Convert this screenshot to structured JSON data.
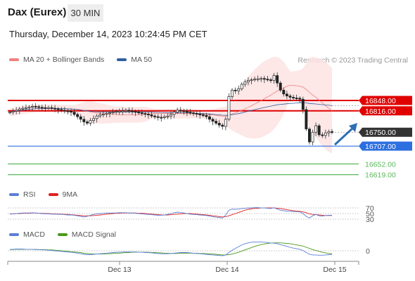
{
  "header": {
    "title": "Dax (Eurex)",
    "timeframe": "30 MIN",
    "datetime": "Thursday, December 14, 2023 10:24:45 PM CET",
    "credit": "Research © 2023 Trading Central"
  },
  "legend": {
    "ma20_label": "MA 20 + Bollinger Bands",
    "ma50_label": "MA 50",
    "rsi_label": "RSI",
    "rsi_ma_label": "9MA",
    "macd_label": "MACD",
    "macd_signal_label": "MACD Signal"
  },
  "colors": {
    "ma20": "#f08080",
    "ma50": "#2f5fa0",
    "bollinger_fill": "#fde3e3",
    "resistance": "#e00000",
    "support": "#2d6fe0",
    "target": "#5cb85c",
    "current": "#333333",
    "rsi": "#5b7fd6",
    "rsi_ma": "#e02020",
    "macd": "#5b7fd6",
    "macd_signal": "#4a9a1a",
    "arrow": "#2f6fb5"
  },
  "chart_data": {
    "type": "candlestick",
    "price_range": [
      16590,
      16950
    ],
    "price_levels": [
      {
        "label": "16848.00",
        "value": 16848,
        "kind": "resistance"
      },
      {
        "label": "16816.00",
        "value": 16816,
        "kind": "resistance"
      },
      {
        "label": "16750.00",
        "value": 16750,
        "kind": "current"
      },
      {
        "label": "16707.00",
        "value": 16707,
        "kind": "support"
      },
      {
        "label": "16652.00",
        "value": 16652,
        "kind": "target"
      },
      {
        "label": "16619.00",
        "value": 16619,
        "kind": "target"
      }
    ],
    "x_labels": [
      "Dec 13",
      "Dec 14",
      "Dec 15"
    ],
    "close": [
      16812,
      16815,
      16818,
      16822,
      16824,
      16826,
      16828,
      16830,
      16829,
      16827,
      16826,
      16825,
      16826,
      16824,
      16822,
      16820,
      16818,
      16816,
      16815,
      16812,
      16805,
      16798,
      16790,
      16782,
      16778,
      16786,
      16792,
      16800,
      16804,
      16806,
      16808,
      16810,
      16812,
      16814,
      16815,
      16816,
      16818,
      16816,
      16814,
      16812,
      16810,
      16808,
      16806,
      16804,
      16800,
      16798,
      16796,
      16795,
      16798,
      16800,
      16805,
      16812,
      16818,
      16816,
      16814,
      16812,
      16810,
      16808,
      16806,
      16804,
      16802,
      16798,
      16790,
      16784,
      16778,
      16772,
      16768,
      16790,
      16860,
      16880,
      16878,
      16884,
      16898,
      16905,
      16910,
      16912,
      16914,
      16915,
      16916,
      16914,
      16912,
      16910,
      16925,
      16902,
      16880,
      16868,
      16862,
      16858,
      16856,
      16855,
      16852,
      16820,
      16760,
      16720,
      16750,
      16770,
      16742,
      16740,
      16748,
      16752,
      16750
    ],
    "rsi": {
      "levels": [
        70,
        50,
        30
      ],
      "series": [
        48,
        49,
        50,
        51,
        52,
        52,
        52,
        53,
        52,
        51,
        50,
        49,
        49,
        48,
        48,
        47,
        47,
        46,
        45,
        45,
        44,
        42,
        40,
        38,
        40,
        44,
        47,
        49,
        50,
        51,
        52,
        52,
        52,
        52,
        53,
        53,
        53,
        52,
        52,
        51,
        50,
        49,
        48,
        47,
        46,
        45,
        44,
        44,
        45,
        47,
        50,
        53,
        55,
        54,
        52,
        50,
        48,
        47,
        46,
        45,
        44,
        43,
        41,
        39,
        37,
        36,
        34,
        45,
        62,
        66,
        65,
        66,
        68,
        69,
        70,
        70,
        71,
        71,
        70,
        70,
        69,
        68,
        71,
        66,
        62,
        60,
        59,
        58,
        57,
        57,
        56,
        50,
        40,
        34,
        42,
        47,
        42,
        41,
        43,
        44,
        44
      ],
      "ma_series": [
        49,
        49,
        50,
        50,
        51,
        51,
        51,
        52,
        52,
        51,
        51,
        50,
        50,
        49,
        49,
        48,
        48,
        47,
        47,
        46,
        45,
        44,
        43,
        42,
        42,
        42,
        43,
        44,
        45,
        46,
        48,
        49,
        50,
        51,
        51,
        52,
        52,
        52,
        52,
        52,
        51,
        51,
        50,
        49,
        48,
        47,
        46,
        45,
        45,
        45,
        46,
        47,
        48,
        49,
        50,
        50,
        50,
        49,
        48,
        47,
        46,
        45,
        44,
        42,
        41,
        39,
        38,
        39,
        42,
        46,
        50,
        54,
        58,
        62,
        65,
        67,
        68,
        69,
        70,
        70,
        70,
        70,
        70,
        69,
        68,
        66,
        64,
        62,
        60,
        59,
        58,
        56,
        53,
        49,
        47,
        46,
        45,
        44,
        43,
        43,
        43
      ]
    },
    "macd": {
      "zero": 0,
      "series": [
        5,
        5,
        6,
        6,
        6,
        5,
        5,
        5,
        4,
        4,
        3,
        3,
        2,
        1,
        0,
        -1,
        -2,
        -3,
        -4,
        -5,
        -6,
        -8,
        -10,
        -12,
        -13,
        -13,
        -12,
        -11,
        -10,
        -9,
        -8,
        -7,
        -6,
        -5,
        -5,
        -4,
        -4,
        -4,
        -4,
        -4,
        -5,
        -5,
        -6,
        -6,
        -7,
        -8,
        -9,
        -10,
        -10,
        -10,
        -9,
        -8,
        -7,
        -6,
        -6,
        -6,
        -7,
        -8,
        -9,
        -10,
        -11,
        -12,
        -13,
        -14,
        -15,
        -16,
        -17,
        -14,
        -6,
        2,
        8,
        14,
        20,
        24,
        27,
        29,
        30,
        30,
        30,
        29,
        28,
        26,
        26,
        24,
        21,
        18,
        15,
        12,
        9,
        7,
        5,
        1,
        -6,
        -12,
        -14,
        -14,
        -15,
        -15,
        -14,
        -13,
        -12
      ],
      "signal_series": [
        4,
        4,
        5,
        5,
        5,
        5,
        5,
        5,
        5,
        4,
        4,
        4,
        3,
        3,
        2,
        1,
        0,
        -1,
        -2,
        -3,
        -4,
        -5,
        -6,
        -8,
        -9,
        -10,
        -11,
        -11,
        -11,
        -11,
        -10,
        -10,
        -9,
        -8,
        -8,
        -7,
        -6,
        -6,
        -5,
        -5,
        -5,
        -5,
        -5,
        -5,
        -6,
        -6,
        -7,
        -7,
        -8,
        -8,
        -9,
        -9,
        -9,
        -8,
        -8,
        -8,
        -8,
        -8,
        -8,
        -9,
        -9,
        -10,
        -10,
        -11,
        -12,
        -13,
        -14,
        -14,
        -13,
        -11,
        -8,
        -5,
        -1,
        3,
        7,
        11,
        15,
        18,
        21,
        23,
        25,
        26,
        27,
        27,
        27,
        26,
        25,
        24,
        22,
        20,
        18,
        16,
        12,
        8,
        4,
        1,
        -2,
        -5,
        -7,
        -9,
        -10
      ]
    }
  },
  "x_axis": {
    "ticks": [
      "Dec 13",
      "Dec 14",
      "Dec 15"
    ]
  }
}
